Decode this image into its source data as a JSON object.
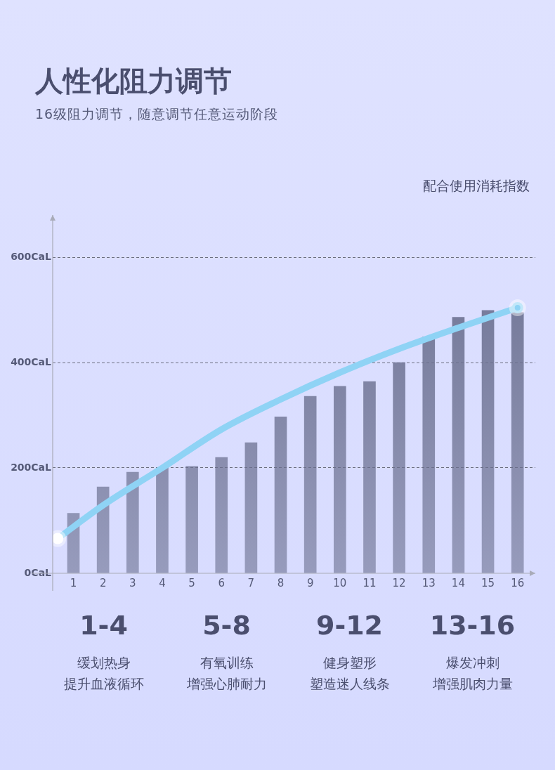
{
  "chart_data": {
    "type": "bar",
    "title": "人性化阻力调节",
    "subtitle": "16级阻力调节，随意调节任意运动阶段",
    "x": [
      1,
      2,
      3,
      4,
      5,
      6,
      7,
      8,
      9,
      10,
      11,
      12,
      13,
      14,
      15,
      16
    ],
    "xlim": [
      0.3,
      16.6
    ],
    "xticks": [
      1,
      2,
      3,
      4,
      5,
      6,
      7,
      8,
      9,
      10,
      11,
      12,
      13,
      14,
      15,
      16
    ],
    "ylim": [
      0,
      680
    ],
    "yticks": [
      {
        "value": 0,
        "label": "0CaL"
      },
      {
        "value": 200,
        "label": "200CaL"
      },
      {
        "value": 400,
        "label": "400CaL"
      },
      {
        "value": 600,
        "label": "600CaL"
      }
    ],
    "grid": "y",
    "legend": false,
    "series": [
      {
        "color": "#6b7090",
        "values": [
          114,
          164,
          192,
          200,
          203,
          220,
          248,
          297,
          336,
          355,
          364,
          400,
          449,
          486,
          499,
          495
        ]
      },
      {
        "type": "line",
        "color": "#8fd3f5",
        "x": [
          0.47,
          2,
          4,
          6,
          8,
          10,
          12,
          14,
          16
        ],
        "values": [
          66,
          129,
          200,
          273,
          330,
          381,
          426,
          466,
          504
        ]
      }
    ],
    "annotations": [
      "配合使用消耗指数",
      "1-4",
      "缓划热身",
      "提升血液循环",
      "5-8",
      "有氧训练",
      "增强心肺耐力",
      "9-12",
      "健身塑形",
      "塑造迷人线条",
      "13-16",
      "爆发冲刺",
      "增强肌肉力量"
    ]
  }
}
